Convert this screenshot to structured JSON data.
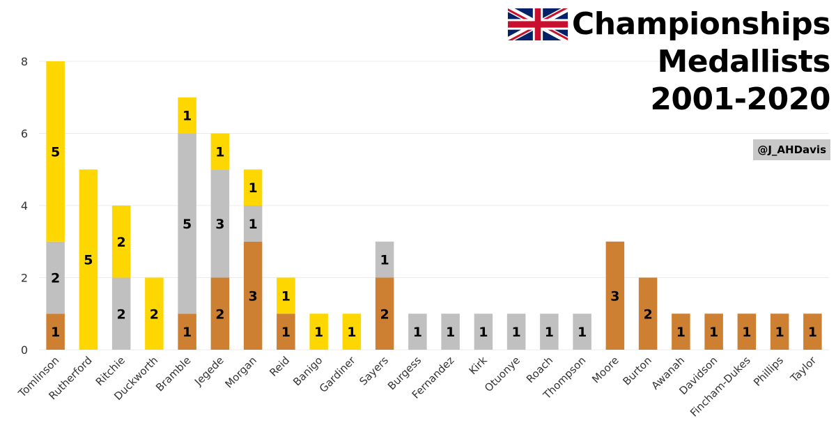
{
  "title": {
    "line1": "Championships",
    "line2": "Medallists",
    "line3": "2001-2020"
  },
  "credit": "@J_AHDavis",
  "colors": {
    "bronze": "#CD7F32",
    "silver": "#C0C0C0",
    "gold": "#FFD700",
    "grid": "#ebebeb",
    "axis_text": "#333333"
  },
  "chart_data": {
    "type": "bar",
    "stacked": true,
    "title": "Championships Medallists 2001-2020",
    "xlabel": "",
    "ylabel": "",
    "ylim": [
      0,
      8
    ],
    "yticks": [
      0,
      2,
      4,
      6,
      8
    ],
    "categories": [
      "Tomlinson",
      "Rutherford",
      "Ritchie",
      "Duckworth",
      "Bramble",
      "Jegede",
      "Morgan",
      "Reid",
      "Banigo",
      "Gardiner",
      "Sayers",
      "Burgess",
      "Fernandez",
      "Kirk",
      "Otuonye",
      "Roach",
      "Thompson",
      "Moore",
      "Burton",
      "Awanah",
      "Davidson",
      "Fincham-Dukes",
      "Phillips",
      "Taylor"
    ],
    "series": [
      {
        "name": "Bronze",
        "values": [
          1,
          0,
          0,
          0,
          1,
          2,
          3,
          1,
          0,
          0,
          2,
          0,
          0,
          0,
          0,
          0,
          0,
          3,
          2,
          1,
          1,
          1,
          1,
          1
        ]
      },
      {
        "name": "Silver",
        "values": [
          2,
          0,
          2,
          0,
          5,
          3,
          1,
          0,
          0,
          0,
          1,
          1,
          1,
          1,
          1,
          1,
          1,
          0,
          0,
          0,
          0,
          0,
          0,
          0
        ]
      },
      {
        "name": "Gold",
        "values": [
          5,
          5,
          2,
          2,
          1,
          1,
          1,
          1,
          1,
          1,
          0,
          0,
          0,
          0,
          0,
          0,
          0,
          0,
          0,
          0,
          0,
          0,
          0,
          0
        ]
      }
    ]
  }
}
